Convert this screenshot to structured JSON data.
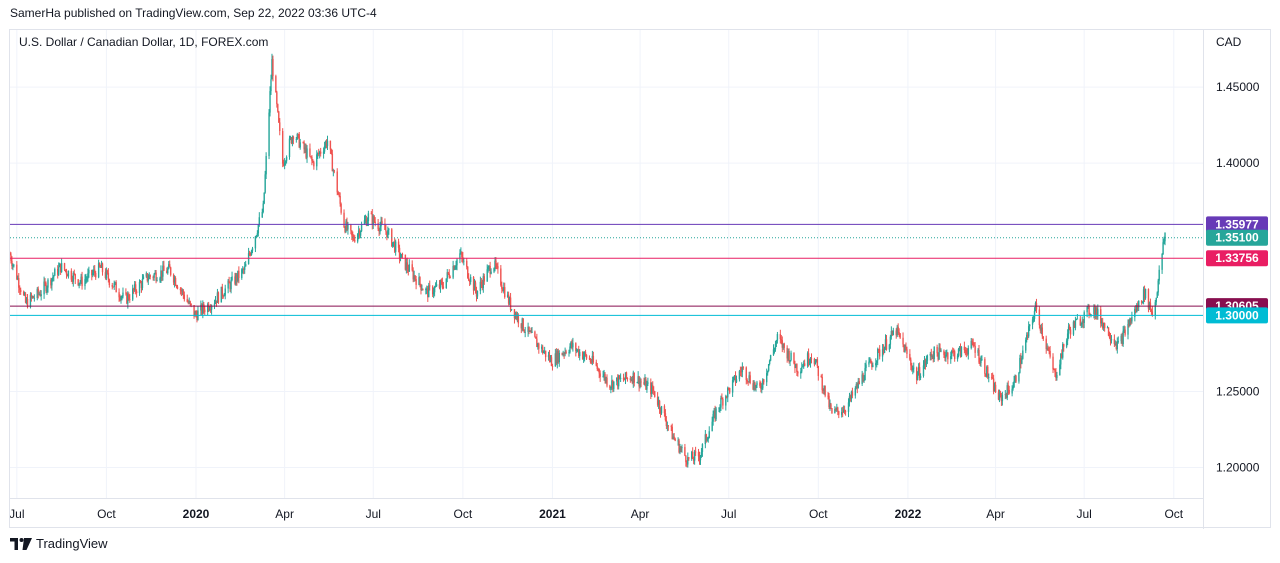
{
  "header": {
    "publish_text": "SamerHa published on TradingView.com, Sep 22, 2022 03:36 UTC-4"
  },
  "footer": {
    "brand": "TradingView",
    "logo_icon": "tradingview-logo-icon"
  },
  "chart_data": {
    "type": "candlestick",
    "title": "U.S. Dollar / Canadian Dollar, 1D, FOREX.com",
    "currency_label": "CAD",
    "ylim": [
      1.18,
      1.4875
    ],
    "y_ticks": [
      1.45,
      1.4,
      1.25,
      1.2
    ],
    "y_tick_labels": [
      "1.45000",
      "1.40000",
      "1.25000",
      "1.20000"
    ],
    "x_ticks": [
      {
        "label": "Jul",
        "bold": false
      },
      {
        "label": "Oct",
        "bold": false
      },
      {
        "label": "2020",
        "bold": true
      },
      {
        "label": "Apr",
        "bold": false
      },
      {
        "label": "Jul",
        "bold": false
      },
      {
        "label": "Oct",
        "bold": false
      },
      {
        "label": "2021",
        "bold": true
      },
      {
        "label": "Apr",
        "bold": false
      },
      {
        "label": "Jul",
        "bold": false
      },
      {
        "label": "Oct",
        "bold": false
      },
      {
        "label": "2022",
        "bold": true
      },
      {
        "label": "Apr",
        "bold": false
      },
      {
        "label": "Jul",
        "bold": false
      },
      {
        "label": "Oct",
        "bold": false
      }
    ],
    "x_range": [
      "2019-06-24",
      "2022-10-31"
    ],
    "price_path": [
      [
        "2019-06-24",
        1.34
      ],
      [
        "2019-07-10",
        1.308
      ],
      [
        "2019-07-25",
        1.315
      ],
      [
        "2019-08-15",
        1.332
      ],
      [
        "2019-09-05",
        1.322
      ],
      [
        "2019-09-25",
        1.331
      ],
      [
        "2019-10-20",
        1.31
      ],
      [
        "2019-11-12",
        1.325
      ],
      [
        "2019-12-05",
        1.33
      ],
      [
        "2019-12-31",
        1.3
      ],
      [
        "2020-01-20",
        1.31
      ],
      [
        "2020-02-20",
        1.33
      ],
      [
        "2020-03-10",
        1.37
      ],
      [
        "2020-03-19",
        1.4667
      ],
      [
        "2020-03-30",
        1.4
      ],
      [
        "2020-04-10",
        1.42
      ],
      [
        "2020-04-30",
        1.4
      ],
      [
        "2020-05-15",
        1.415
      ],
      [
        "2020-06-01",
        1.36
      ],
      [
        "2020-06-10",
        1.35
      ],
      [
        "2020-06-26",
        1.365
      ],
      [
        "2020-07-15",
        1.355
      ],
      [
        "2020-08-01",
        1.335
      ],
      [
        "2020-08-25",
        1.315
      ],
      [
        "2020-09-10",
        1.32
      ],
      [
        "2020-09-28",
        1.34
      ],
      [
        "2020-10-15",
        1.315
      ],
      [
        "2020-11-01",
        1.335
      ],
      [
        "2020-11-20",
        1.305
      ],
      [
        "2020-12-05",
        1.29
      ],
      [
        "2020-12-31",
        1.27
      ],
      [
        "2021-01-20",
        1.28
      ],
      [
        "2021-02-10",
        1.27
      ],
      [
        "2021-03-01",
        1.255
      ],
      [
        "2021-03-25",
        1.26
      ],
      [
        "2021-04-15",
        1.25
      ],
      [
        "2021-05-05",
        1.22
      ],
      [
        "2021-05-20",
        1.205
      ],
      [
        "2021-06-01",
        1.208
      ],
      [
        "2021-06-20",
        1.24
      ],
      [
        "2021-07-15",
        1.265
      ],
      [
        "2021-08-01",
        1.25
      ],
      [
        "2021-08-20",
        1.285
      ],
      [
        "2021-09-10",
        1.265
      ],
      [
        "2021-09-25",
        1.275
      ],
      [
        "2021-10-15",
        1.235
      ],
      [
        "2021-10-30",
        1.24
      ],
      [
        "2021-11-20",
        1.265
      ],
      [
        "2021-12-20",
        1.29
      ],
      [
        "2022-01-10",
        1.26
      ],
      [
        "2022-01-25",
        1.275
      ],
      [
        "2022-02-20",
        1.275
      ],
      [
        "2022-03-10",
        1.28
      ],
      [
        "2022-04-05",
        1.245
      ],
      [
        "2022-04-20",
        1.255
      ],
      [
        "2022-05-12",
        1.305
      ],
      [
        "2022-06-01",
        1.26
      ],
      [
        "2022-06-15",
        1.29
      ],
      [
        "2022-07-10",
        1.305
      ],
      [
        "2022-08-05",
        1.28
      ],
      [
        "2022-08-20",
        1.3
      ],
      [
        "2022-09-01",
        1.315
      ],
      [
        "2022-09-10",
        1.3
      ],
      [
        "2022-09-22",
        1.354
      ]
    ],
    "colors": {
      "up": "#26a69a",
      "down": "#ef5350",
      "grid": "#f0f3fa",
      "text": "#131722"
    },
    "horizontal_levels": [
      {
        "name": "level-1-35977",
        "value": 1.35977,
        "label": "1.35977",
        "color": "#673ab7",
        "style": "solid"
      },
      {
        "name": "level-1-35100-last-price",
        "value": 1.351,
        "label": "1.35100",
        "color": "#26a69a",
        "style": "dotted"
      },
      {
        "name": "level-1-33756",
        "value": 1.33756,
        "label": "1.33756",
        "color": "#e91e63",
        "style": "solid"
      },
      {
        "name": "level-1-30605",
        "value": 1.30605,
        "label": "1.30605",
        "color": "#880e4f",
        "style": "solid"
      },
      {
        "name": "level-1-30000",
        "value": 1.3,
        "label": "1.30000",
        "color": "#00bcd4",
        "style": "solid"
      }
    ]
  }
}
